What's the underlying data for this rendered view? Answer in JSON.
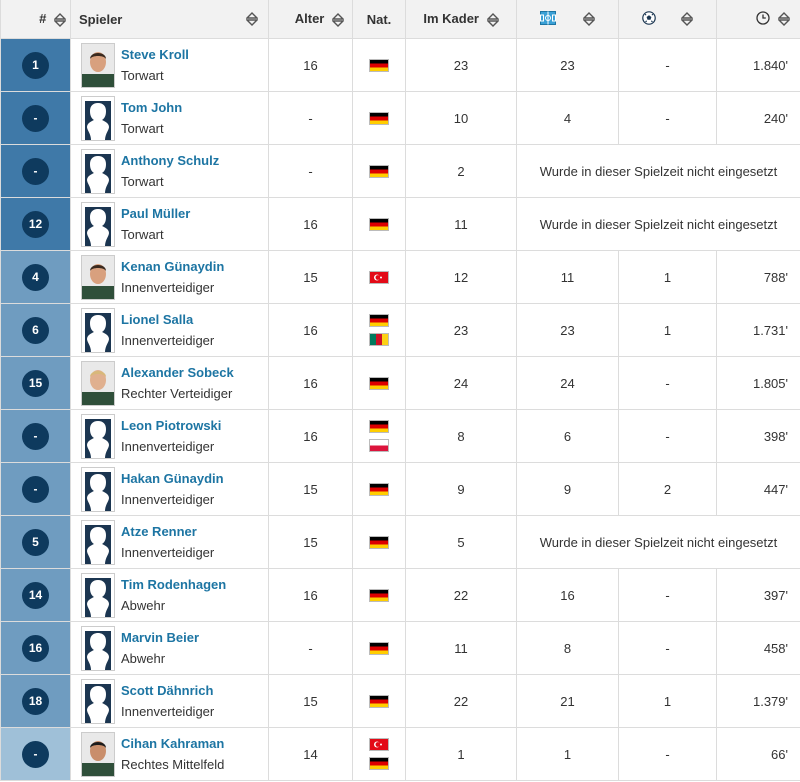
{
  "header": {
    "num": "#",
    "player": "Spieler",
    "age": "Alter",
    "nat": "Nat.",
    "squad": "Im Kader",
    "appearances_icon": "pitch-icon",
    "goals_icon": "ball-icon",
    "minutes_icon": "clock-icon"
  },
  "colors": {
    "circle": "#0e3a5e",
    "num_cell_blue": "#3f79a8",
    "num_cell_light": "#9fc0d8",
    "name_link": "#1d75a3"
  },
  "not_used_text": "Wurde in dieser Spielzeit nicht eingesetzt",
  "rows": [
    {
      "num": "1",
      "name": "Steve Kroll",
      "pos": "Torwart",
      "age": "16",
      "flags": [
        "de"
      ],
      "kader": "23",
      "einsatz": "23",
      "tore": "-",
      "min": "1.840'",
      "photo": "real",
      "numcol": "#3f79a8"
    },
    {
      "num": "-",
      "name": "Tom John",
      "pos": "Torwart",
      "age": "-",
      "flags": [
        "de"
      ],
      "kader": "10",
      "einsatz": "4",
      "tore": "-",
      "min": "240'",
      "photo": "silhouette",
      "numcol": "#3f79a8"
    },
    {
      "num": "-",
      "name": "Anthony Schulz",
      "pos": "Torwart",
      "age": "-",
      "flags": [
        "de"
      ],
      "kader": "2",
      "einsatz": null,
      "photo": "silhouette",
      "numcol": "#3f79a8"
    },
    {
      "num": "12",
      "name": "Paul Müller",
      "pos": "Torwart",
      "age": "16",
      "flags": [
        "de"
      ],
      "kader": "11",
      "einsatz": null,
      "photo": "silhouette",
      "numcol": "#3f79a8"
    },
    {
      "num": "4",
      "name": "Kenan Günaydin",
      "pos": "Innenverteidiger",
      "age": "15",
      "flags": [
        "tr"
      ],
      "kader": "12",
      "einsatz": "11",
      "tore": "1",
      "min": "788'",
      "photo": "real",
      "numcol": "#6f9cc0"
    },
    {
      "num": "6",
      "name": "Lionel Salla",
      "pos": "Innenverteidiger",
      "age": "16",
      "flags": [
        "de",
        "cm"
      ],
      "kader": "23",
      "einsatz": "23",
      "tore": "1",
      "min": "1.731'",
      "photo": "silhouette",
      "numcol": "#6f9cc0"
    },
    {
      "num": "15",
      "name": "Alexander Sobeck",
      "pos": "Rechter Verteidiger",
      "age": "16",
      "flags": [
        "de"
      ],
      "kader": "24",
      "einsatz": "24",
      "tore": "-",
      "min": "1.805'",
      "photo": "real",
      "numcol": "#6f9cc0"
    },
    {
      "num": "-",
      "name": "Leon Piotrowski",
      "pos": "Innenverteidiger",
      "age": "16",
      "flags": [
        "de",
        "pl"
      ],
      "kader": "8",
      "einsatz": "6",
      "tore": "-",
      "min": "398'",
      "photo": "silhouette",
      "numcol": "#6f9cc0"
    },
    {
      "num": "-",
      "name": "Hakan Günaydin",
      "pos": "Innenverteidiger",
      "age": "15",
      "flags": [
        "de"
      ],
      "kader": "9",
      "einsatz": "9",
      "tore": "2",
      "min": "447'",
      "photo": "silhouette",
      "numcol": "#6f9cc0"
    },
    {
      "num": "5",
      "name": "Atze Renner",
      "pos": "Innenverteidiger",
      "age": "15",
      "flags": [
        "de"
      ],
      "kader": "5",
      "einsatz": null,
      "photo": "silhouette",
      "numcol": "#6f9cc0"
    },
    {
      "num": "14",
      "name": "Tim Rodenhagen",
      "pos": "Abwehr",
      "age": "16",
      "flags": [
        "de"
      ],
      "kader": "22",
      "einsatz": "16",
      "tore": "-",
      "min": "397'",
      "photo": "silhouette",
      "numcol": "#6f9cc0"
    },
    {
      "num": "16",
      "name": "Marvin Beier",
      "pos": "Abwehr",
      "age": "-",
      "flags": [
        "de"
      ],
      "kader": "11",
      "einsatz": "8",
      "tore": "-",
      "min": "458'",
      "photo": "silhouette",
      "numcol": "#6f9cc0"
    },
    {
      "num": "18",
      "name": "Scott Dähnrich",
      "pos": "Innenverteidiger",
      "age": "15",
      "flags": [
        "de"
      ],
      "kader": "22",
      "einsatz": "21",
      "tore": "1",
      "min": "1.379'",
      "photo": "silhouette",
      "numcol": "#6f9cc0"
    },
    {
      "num": "-",
      "name": "Cihan Kahraman",
      "pos": "Rechtes Mittelfeld",
      "age": "14",
      "flags": [
        "tr",
        "de"
      ],
      "kader": "1",
      "einsatz": "1",
      "tore": "-",
      "min": "66'",
      "photo": "real",
      "numcol": "#9fc0d8"
    }
  ]
}
